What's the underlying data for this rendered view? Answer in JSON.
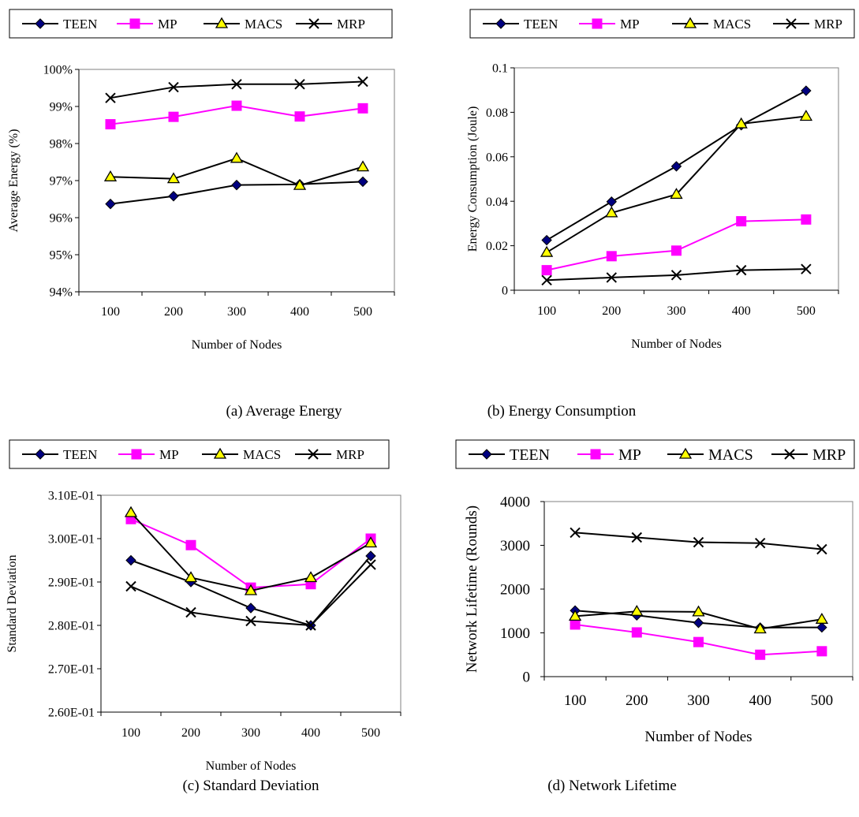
{
  "colors": {
    "teen": "#000080",
    "mp": "#FF00FF",
    "macs": "#FFFF00",
    "mrp": "#000000"
  },
  "series_styles": [
    {
      "key": "teen",
      "marker": "diamond",
      "line": "#000000",
      "fill": "#000080"
    },
    {
      "key": "mp",
      "marker": "square",
      "line": "#FF00FF",
      "fill": "#FF00FF"
    },
    {
      "key": "macs",
      "marker": "triangle",
      "line": "#000000",
      "fill": "#FFFF00"
    },
    {
      "key": "mrp",
      "marker": "cross",
      "line": "#000000",
      "fill": "none"
    }
  ],
  "chart_data": [
    {
      "type": "line",
      "caption": "(a) Average Energy",
      "xlabel": "Number of Nodes",
      "ylabel": "Average Energy (%)",
      "categories": [
        "100",
        "200",
        "300",
        "400",
        "500"
      ],
      "yticks": [
        "94%",
        "95%",
        "96%",
        "97%",
        "98%",
        "99%",
        "100%"
      ],
      "ylim": [
        94,
        100
      ],
      "legend_position": "top",
      "series": [
        {
          "name": "TEEN",
          "values": [
            96.37,
            96.58,
            96.88,
            96.9,
            96.97
          ]
        },
        {
          "name": "MP",
          "values": [
            98.52,
            98.72,
            99.02,
            98.73,
            98.95
          ]
        },
        {
          "name": "MACS",
          "values": [
            97.1,
            97.05,
            97.6,
            96.87,
            97.37
          ]
        },
        {
          "name": "MRP",
          "values": [
            99.23,
            99.52,
            99.6,
            99.6,
            99.67
          ]
        }
      ]
    },
    {
      "type": "line",
      "caption": "(b) Energy Consumption",
      "xlabel": "Number of Nodes",
      "ylabel": "Energy Consumption (Joule)",
      "categories": [
        "100",
        "200",
        "300",
        "400",
        "500"
      ],
      "yticks": [
        "0",
        "0.02",
        "0.04",
        "0.06",
        "0.08",
        "0.1"
      ],
      "ylim": [
        0,
        0.1
      ],
      "legend_position": "top",
      "series": [
        {
          "name": "TEEN",
          "values": [
            0.0225,
            0.0398,
            0.0557,
            0.0742,
            0.0897
          ]
        },
        {
          "name": "MP",
          "values": [
            0.009,
            0.0153,
            0.0178,
            0.031,
            0.0318
          ]
        },
        {
          "name": "MACS",
          "values": [
            0.017,
            0.0348,
            0.0431,
            0.0748,
            0.0782
          ]
        },
        {
          "name": "MRP",
          "values": [
            0.0045,
            0.0057,
            0.0068,
            0.009,
            0.0095
          ]
        }
      ]
    },
    {
      "type": "line",
      "caption": "(c) Standard Deviation",
      "xlabel": "Number of Nodes",
      "ylabel": "Standard Deviation",
      "categories": [
        "100",
        "200",
        "300",
        "400",
        "500"
      ],
      "yticks": [
        "2.60E-01",
        "2.70E-01",
        "2.80E-01",
        "2.90E-01",
        "3.00E-01",
        "3.10E-01"
      ],
      "ylim": [
        0.26,
        0.31
      ],
      "legend_position": "top",
      "series": [
        {
          "name": "TEEN",
          "values": [
            0.295,
            0.29,
            0.284,
            0.28,
            0.296
          ]
        },
        {
          "name": "MP",
          "values": [
            0.3045,
            0.2985,
            0.2887,
            0.2895,
            0.3
          ]
        },
        {
          "name": "MACS",
          "values": [
            0.306,
            0.291,
            0.288,
            0.291,
            0.299
          ]
        },
        {
          "name": "MRP",
          "values": [
            0.289,
            0.283,
            0.281,
            0.28,
            0.294
          ]
        }
      ]
    },
    {
      "type": "line",
      "caption": "(d) Network Lifetime",
      "xlabel": "Number of Nodes",
      "ylabel": "Network Lifetime (Rounds)",
      "categories": [
        "100",
        "200",
        "300",
        "400",
        "500"
      ],
      "yticks": [
        "0",
        "1000",
        "2000",
        "3000",
        "4000"
      ],
      "ylim": [
        0,
        4000
      ],
      "legend_position": "top",
      "series": [
        {
          "name": "TEEN",
          "values": [
            1510,
            1400,
            1230,
            1120,
            1125
          ]
        },
        {
          "name": "MP",
          "values": [
            1190,
            1010,
            790,
            500,
            580
          ]
        },
        {
          "name": "MACS",
          "values": [
            1380,
            1490,
            1480,
            1090,
            1310
          ]
        },
        {
          "name": "MRP",
          "values": [
            3290,
            3180,
            3070,
            3050,
            2910
          ]
        }
      ]
    }
  ]
}
